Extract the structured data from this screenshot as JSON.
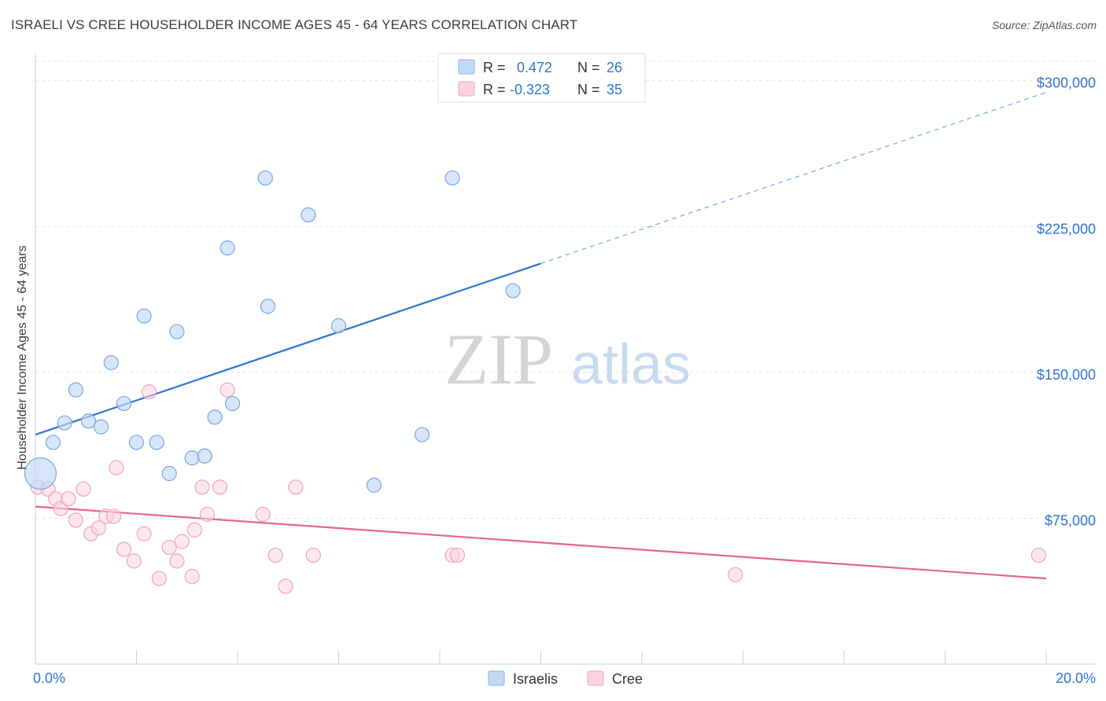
{
  "title": "ISRAELI VS CREE HOUSEHOLDER INCOME AGES 45 - 64 YEARS CORRELATION CHART",
  "source": "Source: ZipAtlas.com",
  "watermark": {
    "zip": "ZIP",
    "atlas": "atlas"
  },
  "legend_top": [
    {
      "r_label": "R =",
      "r_value": "0.472",
      "n_label": "N =",
      "n_value": "26",
      "color": "#8bb4e8",
      "fill": "#c2d8f5"
    },
    {
      "r_label": "R =",
      "r_value": "-0.323",
      "n_label": "N =",
      "n_value": "35",
      "color": "#f0a7c0",
      "fill": "#fbd3e0"
    }
  ],
  "legend_bottom": [
    {
      "label": "Israelis",
      "color": "#8bb4e8",
      "fill": "#c2d8f5"
    },
    {
      "label": "Cree",
      "color": "#f0a7c0",
      "fill": "#fbd3e0"
    }
  ],
  "chart_data": {
    "type": "scatter",
    "title": "ISRAELI VS CREE HOUSEHOLDER INCOME AGES 45 - 64 YEARS CORRELATION CHART",
    "xlabel": "",
    "ylabel": "Householder Income Ages 45 - 64 years",
    "xlim": [
      0,
      20
    ],
    "ylim": [
      0,
      310000
    ],
    "x_tick_labels": [
      "0.0%",
      "20.0%"
    ],
    "y_ticks": [
      75000,
      150000,
      225000,
      300000
    ],
    "y_tick_labels": [
      "$75,000",
      "$150,000",
      "$225,000",
      "$300,000"
    ],
    "grid": true,
    "series": [
      {
        "name": "Israelis",
        "color": "#2f74d0",
        "points": [
          [
            0.1,
            98000
          ],
          [
            0.35,
            114000
          ],
          [
            0.58,
            124000
          ],
          [
            0.8,
            141000
          ],
          [
            1.05,
            125000
          ],
          [
            1.3,
            122000
          ],
          [
            1.5,
            155000
          ],
          [
            1.75,
            134000
          ],
          [
            2.0,
            114000
          ],
          [
            2.15,
            179000
          ],
          [
            2.4,
            114000
          ],
          [
            2.65,
            98000
          ],
          [
            2.8,
            171000
          ],
          [
            3.1,
            106000
          ],
          [
            3.35,
            107000
          ],
          [
            3.55,
            127000
          ],
          [
            3.8,
            214000
          ],
          [
            3.9,
            134000
          ],
          [
            4.55,
            250000
          ],
          [
            4.6,
            184000
          ],
          [
            5.4,
            231000
          ],
          [
            6.0,
            174000
          ],
          [
            6.7,
            92000
          ],
          [
            7.65,
            118000
          ],
          [
            8.25,
            250000
          ],
          [
            9.45,
            192000
          ]
        ],
        "trend": {
          "x0": 0,
          "y0": 118000,
          "x1": 10,
          "y1": 206000,
          "dashed_to_x": 20,
          "dashed_to_y": 294000
        }
      },
      {
        "name": "Cree",
        "color": "#e0668f",
        "points": [
          [
            0.05,
            91000
          ],
          [
            0.25,
            90000
          ],
          [
            0.4,
            85000
          ],
          [
            0.5,
            80000
          ],
          [
            0.65,
            85000
          ],
          [
            0.8,
            74000
          ],
          [
            0.95,
            90000
          ],
          [
            1.1,
            67000
          ],
          [
            1.25,
            70000
          ],
          [
            1.4,
            76000
          ],
          [
            1.55,
            76000
          ],
          [
            1.6,
            101000
          ],
          [
            1.75,
            59000
          ],
          [
            1.95,
            53000
          ],
          [
            2.15,
            67000
          ],
          [
            2.25,
            140000
          ],
          [
            2.45,
            44000
          ],
          [
            2.65,
            60000
          ],
          [
            2.8,
            53000
          ],
          [
            2.9,
            63000
          ],
          [
            3.1,
            45000
          ],
          [
            3.15,
            69000
          ],
          [
            3.3,
            91000
          ],
          [
            3.4,
            77000
          ],
          [
            3.65,
            91000
          ],
          [
            3.8,
            141000
          ],
          [
            4.5,
            77000
          ],
          [
            4.75,
            56000
          ],
          [
            4.95,
            40000
          ],
          [
            5.15,
            91000
          ],
          [
            5.5,
            56000
          ],
          [
            8.25,
            56000
          ],
          [
            8.35,
            56000
          ],
          [
            13.85,
            46000
          ],
          [
            19.85,
            56000
          ]
        ],
        "trend": {
          "x0": 0,
          "y0": 81000,
          "x1": 20,
          "y1": 44000
        }
      }
    ],
    "legend_placement": "top-center"
  }
}
